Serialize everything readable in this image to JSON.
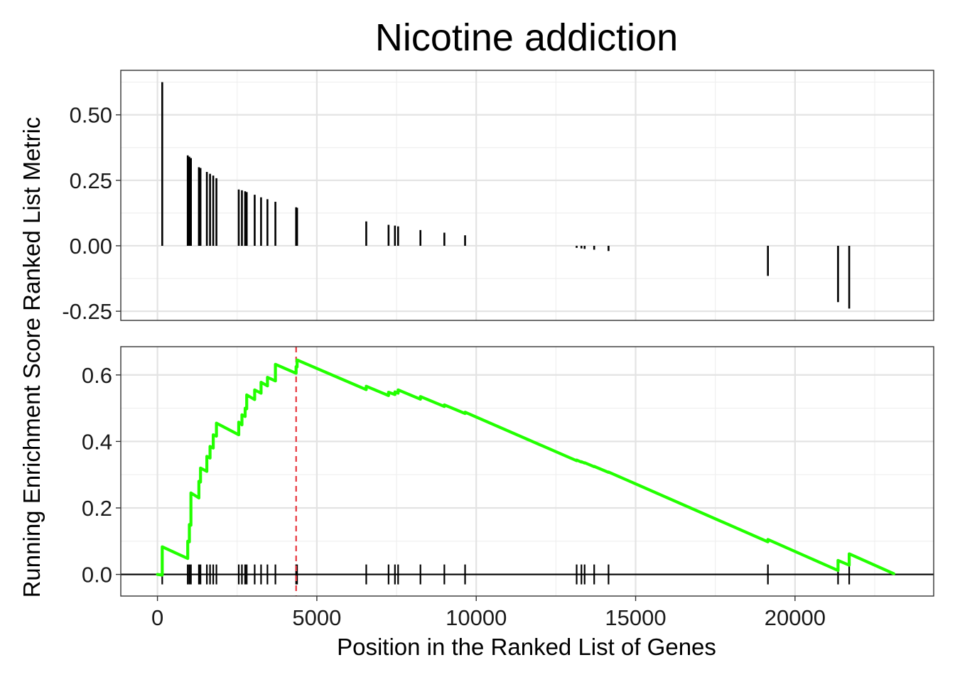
{
  "chart_data": {
    "type": "line",
    "title": "Nicotine addiction",
    "xlabel": "Position in the Ranked List of Genes",
    "ylabel": "Running Enrichment Score Ranked List Metric",
    "xlim": [
      -1150,
      24350
    ],
    "x_ticks": [
      0,
      5000,
      10000,
      15000,
      20000
    ],
    "x_tick_labels": [
      "0",
      "5000",
      "10000",
      "15000",
      "20000"
    ],
    "grid": true,
    "peak_position": 4350,
    "hit_color": "#000000",
    "line_color": "#22ff00",
    "peak_line_color": "#e8353d",
    "panels": [
      {
        "name": "ranked_list_metric",
        "type": "bar",
        "ylim": [
          -0.285,
          0.67
        ],
        "y_ticks": [
          0.5,
          0.25,
          0.0,
          -0.25
        ],
        "y_tick_labels": [
          "0.50",
          "0.25",
          "0.00",
          "-0.25"
        ],
        "hits": [
          {
            "x": 150,
            "y": 0.625
          },
          {
            "x": 950,
            "y": 0.345
          },
          {
            "x": 1000,
            "y": 0.34
          },
          {
            "x": 1050,
            "y": 0.335
          },
          {
            "x": 1300,
            "y": 0.3
          },
          {
            "x": 1350,
            "y": 0.297
          },
          {
            "x": 1550,
            "y": 0.282
          },
          {
            "x": 1650,
            "y": 0.275
          },
          {
            "x": 1750,
            "y": 0.268
          },
          {
            "x": 1850,
            "y": 0.258
          },
          {
            "x": 2550,
            "y": 0.215
          },
          {
            "x": 2650,
            "y": 0.212
          },
          {
            "x": 2750,
            "y": 0.208
          },
          {
            "x": 2800,
            "y": 0.205
          },
          {
            "x": 3050,
            "y": 0.195
          },
          {
            "x": 3250,
            "y": 0.185
          },
          {
            "x": 3450,
            "y": 0.178
          },
          {
            "x": 3700,
            "y": 0.168
          },
          {
            "x": 4350,
            "y": 0.147
          },
          {
            "x": 4380,
            "y": 0.145
          },
          {
            "x": 6550,
            "y": 0.093
          },
          {
            "x": 7250,
            "y": 0.08
          },
          {
            "x": 7450,
            "y": 0.077
          },
          {
            "x": 7550,
            "y": 0.074
          },
          {
            "x": 8250,
            "y": 0.06
          },
          {
            "x": 9000,
            "y": 0.05
          },
          {
            "x": 9650,
            "y": 0.04
          },
          {
            "x": 13150,
            "y": -0.008
          },
          {
            "x": 13300,
            "y": -0.01
          },
          {
            "x": 13400,
            "y": -0.012
          },
          {
            "x": 13700,
            "y": -0.015
          },
          {
            "x": 14150,
            "y": -0.02
          },
          {
            "x": 19150,
            "y": -0.115
          },
          {
            "x": 21350,
            "y": -0.215
          },
          {
            "x": 21700,
            "y": -0.24
          }
        ]
      },
      {
        "name": "running_enrichment_score",
        "type": "line",
        "ylim": [
          -0.065,
          0.685
        ],
        "y_ticks": [
          0.6,
          0.4,
          0.2,
          0.0
        ],
        "y_tick_labels": [
          "0.6",
          "0.4",
          "0.2",
          "0.0"
        ],
        "series": [
          {
            "x": [
              0,
              150,
              150,
              950,
              950,
              1000,
              1000,
              1050,
              1050,
              1300,
              1300,
              1350,
              1350,
              1550,
              1550,
              1650,
              1650,
              1750,
              1750,
              1850,
              1850,
              2550,
              2550,
              2650,
              2650,
              2750,
              2750,
              2800,
              2800,
              3050,
              3050,
              3250,
              3250,
              3450,
              3450,
              3700,
              3700,
              4350,
              4350,
              4380,
              4380,
              6550,
              6550,
              7250,
              7250,
              7450,
              7450,
              7550,
              7550,
              8250,
              8250,
              9000,
              9000,
              9650,
              9650,
              13150,
              13150,
              13300,
              13300,
              13400,
              13400,
              13700,
              13700,
              14150,
              14150,
              19150,
              19150,
              21350,
              21350,
              21700,
              21700,
              23100
            ],
            "y": [
              0.0,
              -0.002,
              0.083,
              0.048,
              0.1,
              0.098,
              0.15,
              0.148,
              0.245,
              0.23,
              0.28,
              0.278,
              0.32,
              0.31,
              0.355,
              0.35,
              0.385,
              0.38,
              0.42,
              0.416,
              0.455,
              0.42,
              0.458,
              0.45,
              0.48,
              0.475,
              0.5,
              0.498,
              0.54,
              0.526,
              0.555,
              0.545,
              0.578,
              0.567,
              0.593,
              0.582,
              0.632,
              0.605,
              0.625,
              0.624,
              0.645,
              0.556,
              0.566,
              0.538,
              0.548,
              0.541,
              0.549,
              0.545,
              0.555,
              0.527,
              0.535,
              0.505,
              0.51,
              0.484,
              0.488,
              0.342,
              0.344,
              0.338,
              0.339,
              0.335,
              0.336,
              0.324,
              0.325,
              0.307,
              0.308,
              0.098,
              0.105,
              0.012,
              0.042,
              0.028,
              0.062,
              0.002
            ]
          }
        ]
      }
    ]
  }
}
